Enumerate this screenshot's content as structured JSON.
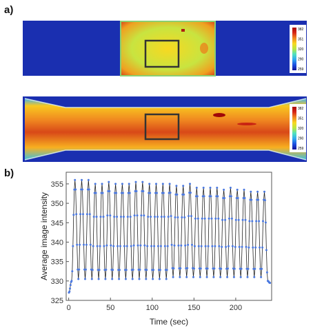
{
  "panel_a": {
    "label": "a)",
    "colorbar_ticks": [
      "382",
      "351",
      "320",
      "290",
      "259"
    ],
    "colors": {
      "background": "#1a2fb0",
      "colormap": [
        "#10139a",
        "#1c4fe0",
        "#2fa8f0",
        "#4fe0c0",
        "#b8e840",
        "#f8d820",
        "#f08820",
        "#d82818",
        "#a80808"
      ]
    }
  },
  "panel_b": {
    "label": "b)"
  },
  "chart_data": {
    "type": "line",
    "xlabel": "Time (sec)",
    "ylabel": "Average image intensity",
    "xlim": [
      -3,
      243
    ],
    "ylim": [
      325,
      358
    ],
    "xticks": [
      "0",
      "50",
      "100",
      "150",
      "200"
    ],
    "yticks": [
      "325",
      "330",
      "335",
      "340",
      "345",
      "350",
      "355"
    ],
    "period_sec": 8.1,
    "series": [
      {
        "marker_color": "#4a78e0",
        "line_color": "#222222",
        "peak_times": [
          7.5,
          15.6,
          23.7,
          31.8,
          39.9,
          48.0,
          56.1,
          64.2,
          72.3,
          80.4,
          88.5,
          96.6,
          104.7,
          112.8,
          120.9,
          129.0,
          137.1,
          145.2,
          153.3,
          161.4,
          169.5,
          177.6,
          185.7,
          193.8,
          201.9,
          210.0,
          218.1,
          226.2,
          234.3
        ],
        "peak_values": [
          356,
          356,
          356,
          355,
          355,
          355.5,
          355,
          355,
          355,
          355.5,
          355.5,
          355,
          355,
          355,
          355,
          354.5,
          354.5,
          355,
          354,
          354,
          354,
          354,
          353.5,
          354,
          353.5,
          353.5,
          353,
          353,
          353
        ],
        "trough_times": [
          3.5,
          11.6,
          19.7,
          27.8,
          35.9,
          44.0,
          52.1,
          60.2,
          68.3,
          76.4,
          84.5,
          92.6,
          100.7,
          108.8,
          116.9,
          125.0,
          133.1,
          141.2,
          149.3,
          157.4,
          165.5,
          173.6,
          181.7,
          189.8,
          197.9,
          206.0,
          214.1,
          222.2,
          230.3,
          238.4
        ],
        "trough_values": [
          330,
          330.5,
          330.5,
          330.5,
          330.5,
          330.5,
          330.5,
          330.5,
          330.5,
          330.5,
          330.5,
          330.5,
          330.5,
          330.5,
          330.5,
          331,
          331,
          331,
          331,
          331,
          331,
          331,
          331,
          331,
          331,
          331,
          331,
          331,
          331,
          330
        ],
        "start": [
          0.3,
          327
        ],
        "end": [
          241,
          329.5
        ]
      }
    ]
  }
}
